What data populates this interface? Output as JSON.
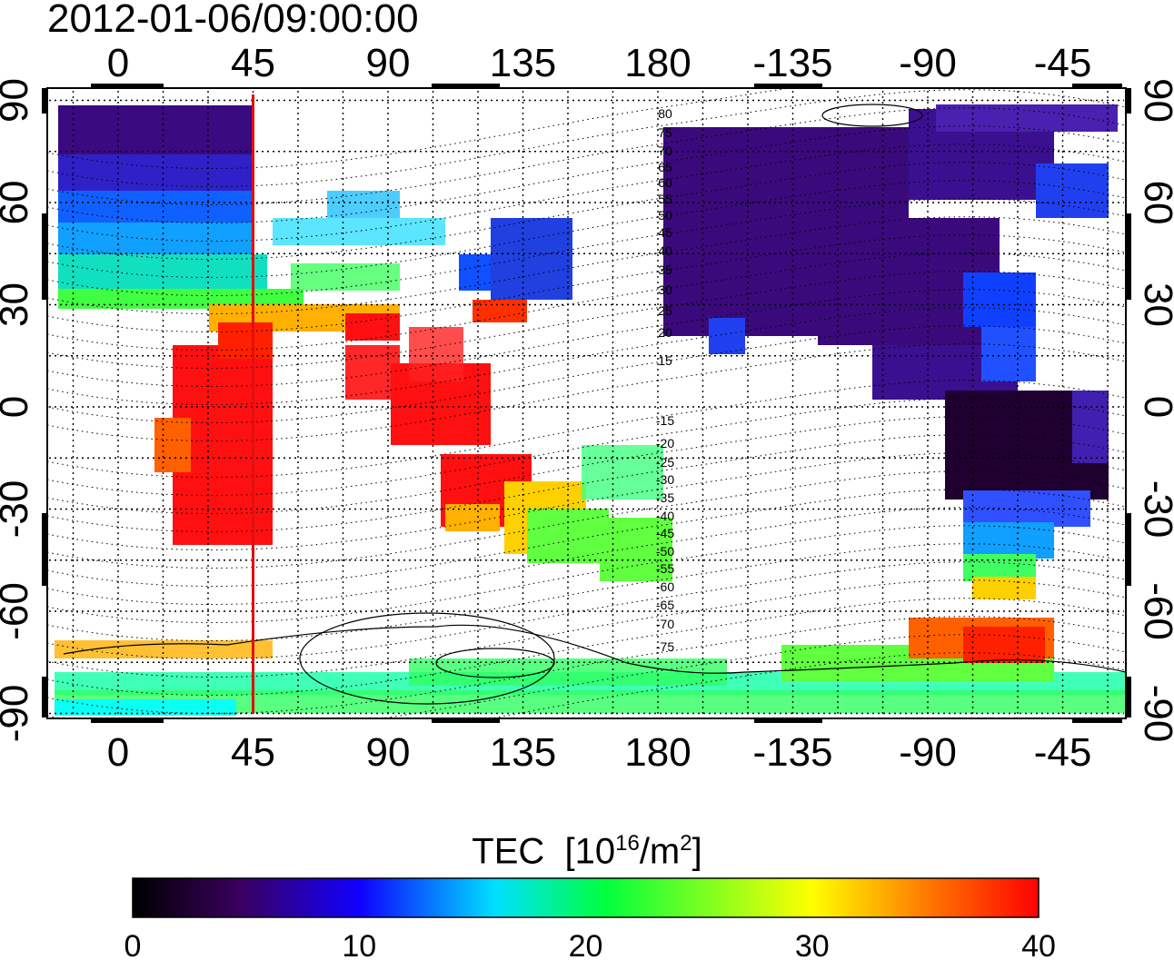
{
  "title": "2012-01-06/09:00:00",
  "map": {
    "projection": "equirectangular",
    "lon_ticks": [
      0,
      45,
      90,
      135,
      180,
      -135,
      -90,
      -45
    ],
    "lat_ticks": [
      90,
      60,
      30,
      0,
      -30,
      -60,
      -90
    ],
    "grid": "dotted every 15 degrees",
    "marker_line_lon": 45,
    "marker_line_color": "#e01010",
    "contour_labels": [
      "80",
      "75",
      "70",
      "65",
      "60",
      "55",
      "50",
      "45",
      "40",
      "35",
      "30",
      "25",
      "20",
      "15",
      "-15",
      "-20",
      "-25",
      "-30",
      "-35",
      "-40",
      "-45",
      "-50",
      "-55",
      "-60",
      "-65",
      "-70",
      "-75"
    ]
  },
  "colorbar": {
    "label_main": "TEC",
    "label_unit_pre": "[10",
    "label_unit_exp": "16",
    "label_unit_mid": "/m",
    "label_unit_exp2": "2",
    "label_unit_post": "]",
    "min": 0,
    "max": 40,
    "ticks": [
      "0",
      "10",
      "20",
      "30",
      "40"
    ],
    "colors": [
      "#000000",
      "#3a0060",
      "#1000ff",
      "#00e0ff",
      "#00ff40",
      "#ffff00",
      "#ff8000",
      "#ff0000"
    ]
  }
}
